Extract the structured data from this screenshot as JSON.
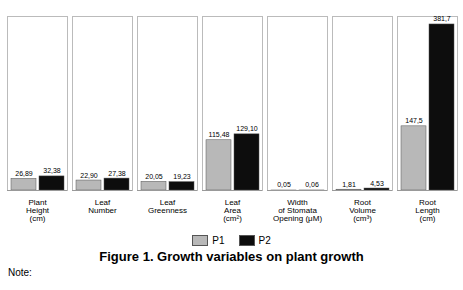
{
  "chart_data": {
    "type": "bar",
    "title": "Figure 1. Growth variables on plant growth",
    "annotations": [
      "Note:"
    ],
    "categories": [
      "Plant\nHeight\n(cm)",
      "Leaf\nNumber",
      "Leaf\nGreenness",
      "Leaf\nArea\n(cm²)",
      "Width\nof Stomata\nOpening (μM)",
      "Root\nVolume\n(cm³)",
      "Root\nLength\n(cm)"
    ],
    "series": [
      {
        "name": "P1",
        "color": "#b8b8b8",
        "values": [
          26.89,
          22.9,
          20.05,
          115.48,
          0.05,
          1.81,
          147.5
        ],
        "value_labels": [
          "26,89",
          "22,90",
          "20,05",
          "115,48",
          "0,05",
          "1,81",
          "147,5"
        ]
      },
      {
        "name": "P2",
        "color": "#0d0d0d",
        "values": [
          32.38,
          27.38,
          19.23,
          129.1,
          0.06,
          4.53,
          381.7
        ],
        "value_labels": [
          "32,38",
          "27,38",
          "19,23",
          "129,10",
          "0,06",
          "4,53",
          "381,7"
        ]
      }
    ],
    "ylim": [
      0,
      400
    ],
    "data_labels": true,
    "tick_labels": "x",
    "legend": "bottom",
    "grid": false
  }
}
